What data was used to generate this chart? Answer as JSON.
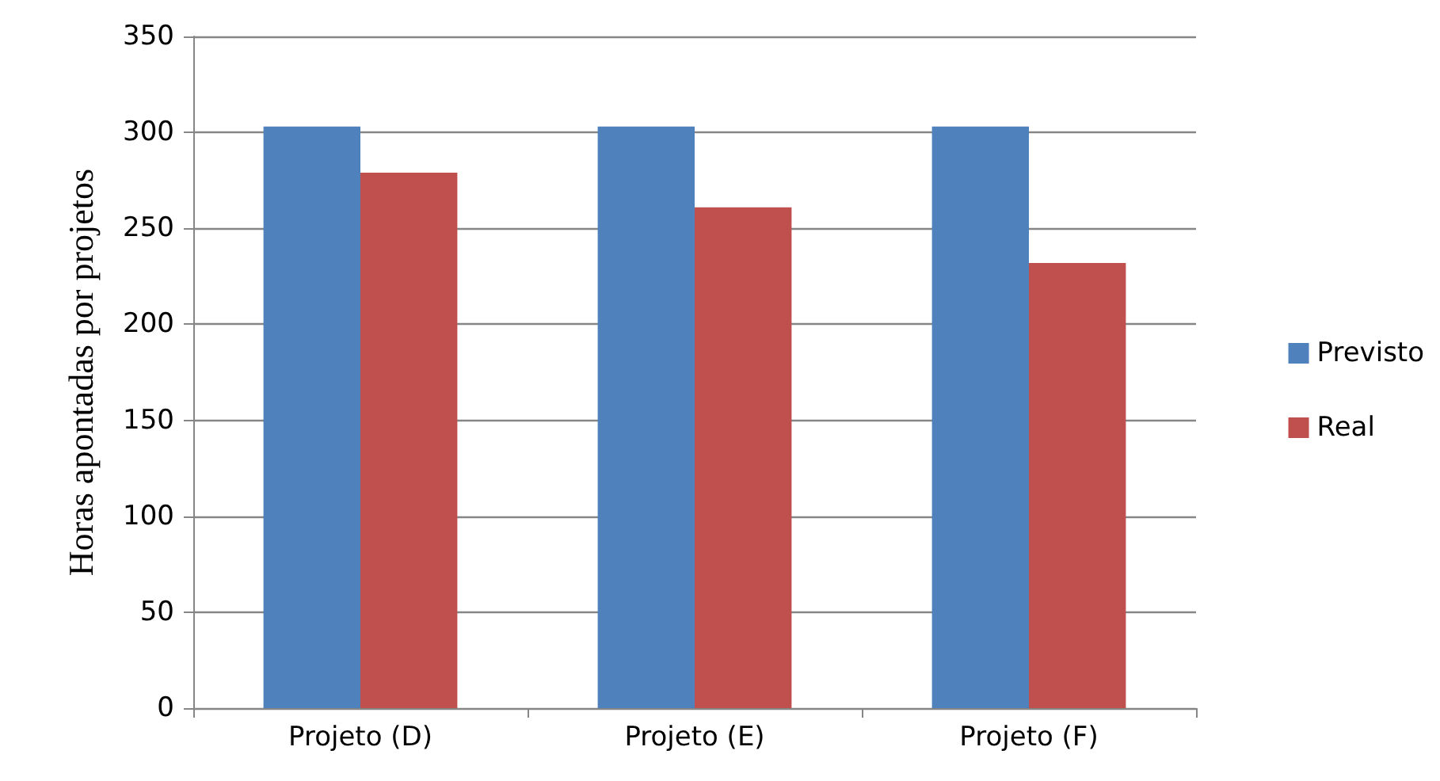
{
  "chart_data": {
    "type": "bar",
    "ylabel": "Horas apontadas por projetos",
    "categories": [
      "Projeto (D)",
      "Projeto (E)",
      "Projeto (F)"
    ],
    "series": [
      {
        "name": "Previsto",
        "color": "#4f81bd",
        "values": [
          303,
          303,
          303
        ]
      },
      {
        "name": "Real",
        "color": "#c0504d",
        "values": [
          279,
          261,
          232
        ]
      }
    ],
    "ylim": [
      0,
      350
    ],
    "yticks": [
      0,
      50,
      100,
      150,
      200,
      250,
      300,
      350
    ],
    "grid": "y",
    "legend": "right"
  }
}
